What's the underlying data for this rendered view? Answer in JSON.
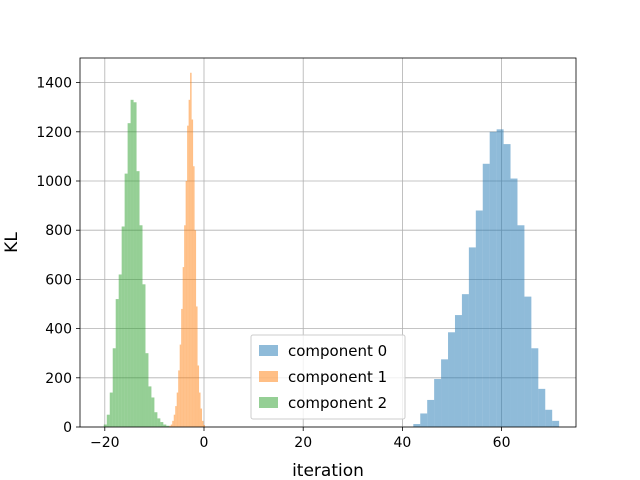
{
  "chart_data": {
    "type": "bar",
    "xlabel": "iteration",
    "ylabel": "KL",
    "xlim": [
      -25,
      75
    ],
    "ylim": [
      0,
      1500
    ],
    "xticks": [
      -20,
      0,
      20,
      40,
      60
    ],
    "yticks": [
      0,
      200,
      400,
      600,
      800,
      1000,
      1200,
      1400
    ],
    "xtick_labels": [
      "−20",
      "0",
      "20",
      "40",
      "60"
    ],
    "ytick_labels": [
      "0",
      "200",
      "400",
      "600",
      "800",
      "1000",
      "1200",
      "1400"
    ],
    "grid": true,
    "legend_position": "lower-center",
    "series": [
      {
        "name": "component 0",
        "color": "#1f77b4",
        "opacity": 0.5,
        "bin_start": 42.2,
        "bin_width": 1.4,
        "values": [
          12,
          55,
          110,
          195,
          275,
          385,
          455,
          540,
          730,
          880,
          1070,
          1200,
          1210,
          1150,
          1010,
          820,
          530,
          320,
          155,
          70,
          25
        ]
      },
      {
        "name": "component 1",
        "color": "#ff7f0e",
        "opacity": 0.5,
        "bin_start": -7.0,
        "bin_width": 0.3,
        "values": [
          5,
          10,
          25,
          50,
          85,
          140,
          230,
          335,
          480,
          650,
          820,
          1000,
          1225,
          1330,
          1440,
          1250,
          1060,
          800,
          490,
          250,
          140,
          75,
          25,
          8
        ]
      },
      {
        "name": "component 2",
        "color": "#2ca02c",
        "opacity": 0.5,
        "bin_start": -20.2,
        "bin_width": 0.6,
        "values": [
          10,
          50,
          140,
          320,
          520,
          620,
          815,
          1030,
          1235,
          1330,
          1320,
          1040,
          820,
          580,
          300,
          165,
          120,
          60,
          35,
          20,
          10,
          5
        ]
      }
    ]
  }
}
